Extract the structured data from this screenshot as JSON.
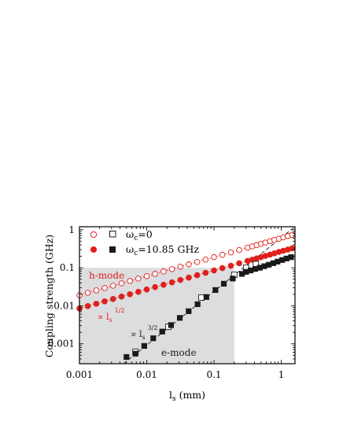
{
  "chart_data": {
    "type": "scatter",
    "xscale": "log",
    "yscale": "log",
    "xlim": [
      0.001,
      1.6
    ],
    "ylim": [
      0.0003,
      1.2
    ],
    "xlabel_main": "l",
    "xlabel_sub": "s",
    "xlabel_unit": " (mm)",
    "ylabel": "Coupling strength (GHz)",
    "xticks": [
      {
        "value": 0.001,
        "label": "0.001"
      },
      {
        "value": 0.01,
        "label": "0.01"
      },
      {
        "value": 0.1,
        "label": "0.1"
      },
      {
        "value": 1,
        "label": "1"
      }
    ],
    "yticks": [
      {
        "value": 0.001,
        "label": "0.001"
      },
      {
        "value": 0.01,
        "label": "0.01"
      },
      {
        "value": 0.1,
        "label": "0.1"
      },
      {
        "value": 1,
        "label": "1"
      }
    ],
    "shaded_region": {
      "x": [
        0.001,
        0.2
      ],
      "y": [
        0.0003,
        0.1
      ]
    },
    "legend": {
      "placement": "top-left",
      "rows": [
        {
          "omega": "ω",
          "sub": "c",
          "text": "=0"
        },
        {
          "omega": "ω",
          "sub": "c",
          "text": "=10.85 GHz"
        }
      ]
    },
    "annotations": {
      "h_mode": "h-mode",
      "e_mode": "e-mode",
      "sqrt_label": "∝ l",
      "sqrt_sub": "s",
      "sqrt_sup": "1/2",
      "pow_label": "∝ l",
      "pow_sub": "s",
      "pow_sup": "3/2"
    },
    "colors": {
      "h_mode": "#e0201b",
      "e_mode": "#1a1a1a",
      "shade": "#dcdddf"
    },
    "fit_lines": [
      {
        "color": "#e0201b",
        "x": [
          0.001,
          1.6
        ],
        "y": [
          0.019,
          0.76
        ]
      },
      {
        "color": "#e0201b",
        "x": [
          0.001,
          1.6
        ],
        "y": [
          0.0085,
          0.34
        ]
      },
      {
        "color": "#1a1a1a",
        "x": [
          0.0045,
          1.6
        ],
        "y": [
          0.0003,
          1.2
        ]
      }
    ],
    "series": [
      {
        "marker": "circle-open",
        "color": "#e0201b",
        "x": [
          0.001,
          0.00133,
          0.00178,
          0.00237,
          0.00316,
          0.00422,
          0.00562,
          0.0075,
          0.01,
          0.0133,
          0.0178,
          0.0237,
          0.0316,
          0.0422,
          0.0562,
          0.075,
          0.1,
          0.133,
          0.178,
          0.237,
          0.316,
          0.37,
          0.43,
          0.5,
          0.58,
          0.68,
          0.79,
          0.92,
          1.07,
          1.25,
          1.45
        ],
        "y": [
          0.019,
          0.0219,
          0.0254,
          0.0293,
          0.0338,
          0.039,
          0.045,
          0.052,
          0.06,
          0.069,
          0.08,
          0.092,
          0.107,
          0.123,
          0.142,
          0.164,
          0.19,
          0.219,
          0.253,
          0.292,
          0.338,
          0.365,
          0.395,
          0.425,
          0.46,
          0.5,
          0.54,
          0.58,
          0.63,
          0.68,
          0.73
        ]
      },
      {
        "marker": "circle-filled",
        "color": "#e0201b",
        "x": [
          0.001,
          0.00133,
          0.00178,
          0.00237,
          0.00316,
          0.00422,
          0.00562,
          0.0075,
          0.01,
          0.0133,
          0.0178,
          0.0237,
          0.0316,
          0.0422,
          0.0562,
          0.075,
          0.1,
          0.133,
          0.178,
          0.237,
          0.316,
          0.37,
          0.43,
          0.5,
          0.58,
          0.68,
          0.79,
          0.92,
          1.07,
          1.25,
          1.45
        ],
        "y": [
          0.0085,
          0.0098,
          0.0113,
          0.0131,
          0.0151,
          0.0175,
          0.0201,
          0.0233,
          0.0269,
          0.031,
          0.0358,
          0.0413,
          0.0478,
          0.0551,
          0.0637,
          0.0735,
          0.085,
          0.098,
          0.113,
          0.131,
          0.151,
          0.163,
          0.176,
          0.19,
          0.205,
          0.222,
          0.24,
          0.26,
          0.28,
          0.3,
          0.325
        ]
      },
      {
        "marker": "square-open",
        "color": "#1a1a1a",
        "x": [
          0.0068,
          0.021,
          0.065,
          0.2,
          0.3,
          0.42
        ],
        "y": [
          0.00062,
          0.0028,
          0.0165,
          0.065,
          0.1,
          0.125
        ]
      },
      {
        "marker": "square-filled",
        "color": "#1a1a1a",
        "x": [
          0.005,
          0.0068,
          0.0092,
          0.0125,
          0.017,
          0.023,
          0.031,
          0.042,
          0.057,
          0.077,
          0.105,
          0.14,
          0.19,
          0.26,
          0.3,
          0.35,
          0.41,
          0.48,
          0.56,
          0.65,
          0.76,
          0.88,
          1.03,
          1.2,
          1.4
        ],
        "y": [
          0.00045,
          0.00055,
          0.00088,
          0.0014,
          0.0021,
          0.0031,
          0.0048,
          0.0072,
          0.011,
          0.017,
          0.026,
          0.038,
          0.052,
          0.069,
          0.078,
          0.085,
          0.093,
          0.1,
          0.11,
          0.12,
          0.132,
          0.145,
          0.16,
          0.175,
          0.19
        ]
      }
    ]
  }
}
